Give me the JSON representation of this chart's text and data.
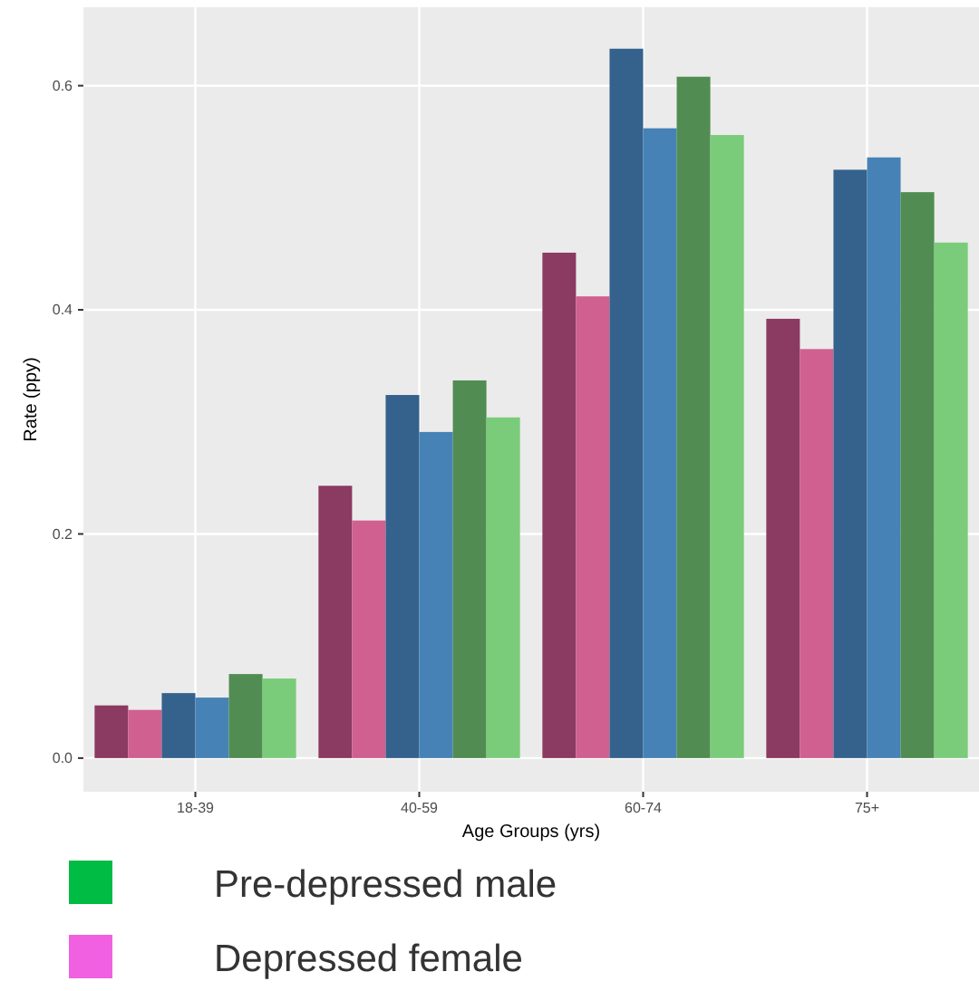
{
  "chart_data": {
    "type": "bar",
    "xlabel": "Age Groups (yrs)",
    "ylabel": "Rate (ppy)",
    "categories": [
      "18-39",
      "40-59",
      "60-74",
      "75+"
    ],
    "series": [
      {
        "color": "#8b3a62",
        "values": [
          0.047,
          0.243,
          0.451,
          0.392
        ]
      },
      {
        "color": "#d0608f",
        "values": [
          0.043,
          0.212,
          0.412,
          0.365
        ]
      },
      {
        "color": "#35628c",
        "values": [
          0.058,
          0.324,
          0.633,
          0.525
        ]
      },
      {
        "color": "#4682b6",
        "values": [
          0.054,
          0.291,
          0.562,
          0.536
        ]
      },
      {
        "color": "#518d52",
        "values": [
          0.075,
          0.337,
          0.608,
          0.505
        ]
      },
      {
        "color": "#7acc7a",
        "values": [
          0.071,
          0.304,
          0.556,
          0.46
        ]
      }
    ],
    "ylim": [
      -0.03,
      0.67
    ],
    "yticks": [
      {
        "value": 0,
        "label": "0.0"
      },
      {
        "value": 0.2,
        "label": "0.2"
      },
      {
        "value": 0.4,
        "label": "0.4"
      },
      {
        "value": 0.6,
        "label": "0.6"
      }
    ],
    "grid": true,
    "annotations": [
      "Pre-depressed male",
      "Depressed female"
    ]
  }
}
